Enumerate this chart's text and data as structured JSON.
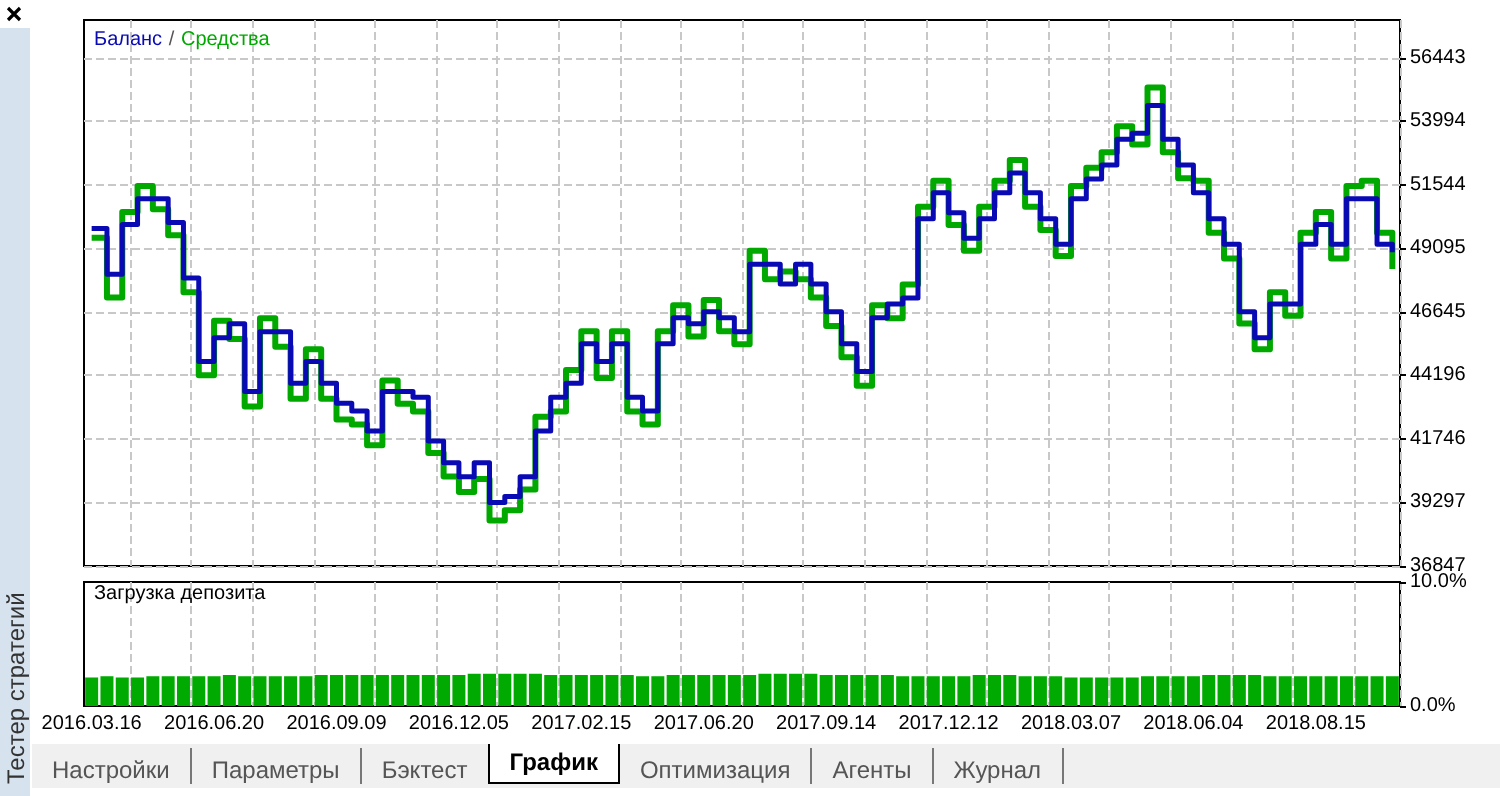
{
  "chart_data": [
    {
      "type": "step",
      "legend": "top left",
      "annotations": [
        "/"
      ],
      "grid": true,
      "tick_labels": "y",
      "categories": [
        "2016.03.16",
        null,
        null,
        null,
        null,
        null,
        null,
        null,
        "2016.06.20",
        null,
        null,
        null,
        null,
        null,
        null,
        null,
        "2016.09.09",
        null,
        null,
        null,
        null,
        null,
        null,
        null,
        "2016.12.05",
        null,
        null,
        null,
        null,
        null,
        null,
        null,
        "2017.02.15",
        null,
        null,
        null,
        null,
        null,
        null,
        null,
        "2017.06.20",
        null,
        null,
        null,
        null,
        null,
        null,
        null,
        "2017.09.14",
        null,
        null,
        null,
        null,
        null,
        null,
        null,
        "2017.12.12",
        null,
        null,
        null,
        null,
        null,
        null,
        null,
        "2018.03.07",
        null,
        null,
        null,
        null,
        null,
        null,
        null,
        "2018.06.04",
        null,
        null,
        null,
        null,
        null,
        null,
        null,
        "2018.08.15",
        null,
        null,
        null,
        null,
        null
      ],
      "ylim": [
        36847,
        57900
      ],
      "yticks": [
        36847,
        39297,
        41746,
        44196,
        46645,
        49095,
        51544,
        53994,
        56443
      ],
      "series": [
        {
          "name": "Баланс",
          "color": "#0a0ab4",
          "values": [
            49860,
            48100,
            50010,
            51010,
            51010,
            50090,
            47950,
            44730,
            45650,
            46190,
            43580,
            45880,
            45880,
            43890,
            44730,
            43890,
            43120,
            42820,
            42050,
            43580,
            43580,
            43350,
            41670,
            40830,
            40290,
            40830,
            39300,
            39530,
            40290,
            42050,
            43350,
            43890,
            45420,
            44730,
            45420,
            43350,
            42820,
            45420,
            46420,
            46190,
            46650,
            46420,
            45880,
            48480,
            48480,
            47720,
            48480,
            47720,
            46650,
            45420,
            44350,
            46420,
            46950,
            47180,
            50240,
            51240,
            50470,
            49480,
            50240,
            51240,
            52000,
            51240,
            50240,
            49250,
            51010,
            51770,
            52310,
            53300,
            53530,
            54600,
            53300,
            52310,
            51240,
            50240,
            49250,
            46650,
            45650,
            46950,
            46950,
            49250,
            50010,
            49250,
            51010,
            51010,
            49250,
            48940
          ]
        },
        {
          "name": "Средства",
          "color": "#00a800",
          "values": [
            49500,
            47200,
            50500,
            51500,
            50600,
            49600,
            47400,
            44200,
            46300,
            45600,
            43000,
            46400,
            45300,
            43300,
            45200,
            43300,
            42500,
            42300,
            41500,
            44000,
            43100,
            42800,
            41200,
            40300,
            39700,
            40200,
            38600,
            39000,
            39800,
            42600,
            42800,
            44400,
            45900,
            44100,
            45900,
            42800,
            42300,
            45900,
            46900,
            45700,
            47100,
            45900,
            45400,
            49000,
            47900,
            48200,
            47900,
            47200,
            46100,
            44900,
            43800,
            46900,
            46400,
            47700,
            50700,
            51700,
            50000,
            49000,
            50700,
            51700,
            52500,
            50700,
            49800,
            48800,
            51500,
            52200,
            52800,
            53800,
            53100,
            55300,
            52800,
            51800,
            51700,
            49700,
            48700,
            46200,
            45200,
            47400,
            46500,
            49700,
            50500,
            48700,
            51500,
            51700,
            49700,
            48300
          ]
        }
      ]
    },
    {
      "type": "bar",
      "title": "Загрузка депозита",
      "grid": "x",
      "color": "#00aa00",
      "categories": [
        "2016.03.16",
        null,
        null,
        null,
        null,
        null,
        null,
        null,
        "2016.06.20",
        null,
        null,
        null,
        null,
        null,
        null,
        null,
        "2016.09.09",
        null,
        null,
        null,
        null,
        null,
        null,
        null,
        "2016.12.05",
        null,
        null,
        null,
        null,
        null,
        null,
        null,
        "2017.02.15",
        null,
        null,
        null,
        null,
        null,
        null,
        null,
        "2017.06.20",
        null,
        null,
        null,
        null,
        null,
        null,
        null,
        "2017.09.14",
        null,
        null,
        null,
        null,
        null,
        null,
        null,
        "2017.12.12",
        null,
        null,
        null,
        null,
        null,
        null,
        null,
        "2018.03.07",
        null,
        null,
        null,
        null,
        null,
        null,
        null,
        "2018.06.04",
        null,
        null,
        null,
        null,
        null,
        null,
        null,
        "2018.08.15",
        null,
        null,
        null,
        null,
        null
      ],
      "ylim": [
        0,
        10
      ],
      "yticks": [
        {
          "value": 0,
          "label": "0.0%"
        },
        {
          "value": 10,
          "label": "10.0%"
        }
      ],
      "values": [
        2.3,
        2.4,
        2.3,
        2.3,
        2.4,
        2.4,
        2.4,
        2.4,
        2.4,
        2.5,
        2.4,
        2.4,
        2.4,
        2.4,
        2.4,
        2.5,
        2.5,
        2.5,
        2.5,
        2.5,
        2.5,
        2.5,
        2.5,
        2.5,
        2.5,
        2.6,
        2.6,
        2.6,
        2.6,
        2.6,
        2.5,
        2.5,
        2.5,
        2.5,
        2.5,
        2.5,
        2.4,
        2.4,
        2.5,
        2.5,
        2.5,
        2.5,
        2.5,
        2.5,
        2.6,
        2.6,
        2.6,
        2.6,
        2.5,
        2.5,
        2.5,
        2.5,
        2.5,
        2.4,
        2.4,
        2.4,
        2.4,
        2.4,
        2.5,
        2.5,
        2.5,
        2.4,
        2.4,
        2.4,
        2.3,
        2.3,
        2.3,
        2.3,
        2.3,
        2.4,
        2.4,
        2.4,
        2.4,
        2.5,
        2.5,
        2.5,
        2.5,
        2.4,
        2.4,
        2.4,
        2.4,
        2.4,
        2.4,
        2.4,
        2.4,
        2.4
      ]
    },
    {
      "type": "other",
      "title": "Тестер стратегий",
      "annotations": [
        "Настройки",
        "Параметры",
        "Бэктест",
        "График",
        "Оптимизация",
        "Агенты",
        "Журнал"
      ]
    }
  ]
}
